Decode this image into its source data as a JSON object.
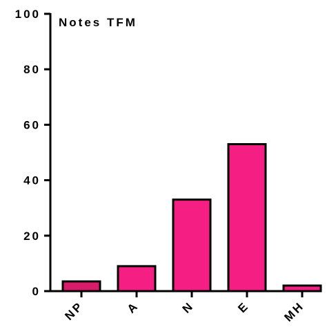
{
  "chart_data": {
    "type": "bar",
    "title": "Notes TFM",
    "categories": [
      "NP",
      "A",
      "N",
      "E",
      "MH"
    ],
    "values": [
      3.5,
      9,
      33,
      53,
      2
    ],
    "ylim": [
      0,
      100
    ],
    "yticks": [
      0,
      20,
      40,
      60,
      80,
      100
    ],
    "xlabel": "",
    "ylabel": "",
    "grid": false,
    "legend": "none",
    "colors": {
      "bar_fill": "#f51f84",
      "bar_fill_first": "#d81b6a",
      "bar_stroke": "#000000",
      "axis": "#000000"
    }
  }
}
